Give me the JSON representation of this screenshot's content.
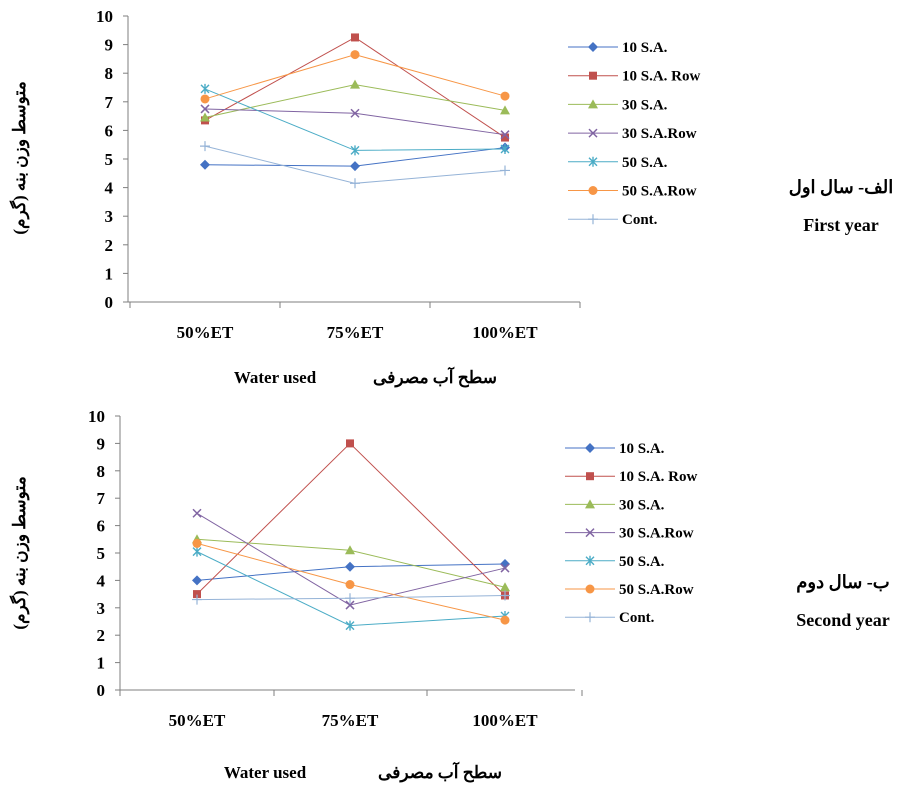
{
  "series_styles": [
    {
      "color": "#4472c4",
      "marker": "diamond"
    },
    {
      "color": "#c0504d",
      "marker": "square"
    },
    {
      "color": "#9bbb59",
      "marker": "triangle"
    },
    {
      "color": "#8064a2",
      "marker": "x"
    },
    {
      "color": "#4bacc6",
      "marker": "star"
    },
    {
      "color": "#f79646",
      "marker": "circle"
    },
    {
      "color": "#95b3d7",
      "marker": "plus"
    }
  ],
  "chart_data": [
    {
      "type": "line",
      "categories": [
        "50%ET",
        "75%ET",
        "100%ET"
      ],
      "ylim": [
        0,
        10
      ],
      "yticks": [
        "0",
        "1",
        "2",
        "3",
        "4",
        "5",
        "6",
        "7",
        "8",
        "9",
        "10"
      ],
      "ylabel": "متوسط وزن بنه (گرم)",
      "xlabel_en": "Water used",
      "xlabel_fa": "سطح آب مصرفی",
      "side_label_fa": "الف- سال اول",
      "side_label_en": "First year",
      "legend_position": "right",
      "grid": false,
      "series": [
        {
          "name": "10 S.A.",
          "values": [
            4.8,
            4.75,
            5.4
          ]
        },
        {
          "name": "10 S.A. Row",
          "values": [
            6.35,
            9.25,
            5.75
          ]
        },
        {
          "name": "30 S.A.",
          "values": [
            6.45,
            7.6,
            6.7
          ]
        },
        {
          "name": "30 S.A.Row",
          "values": [
            6.75,
            6.6,
            5.85
          ]
        },
        {
          "name": "50 S.A.",
          "values": [
            7.45,
            5.3,
            5.35
          ]
        },
        {
          "name": "50 S.A.Row",
          "values": [
            7.1,
            8.65,
            7.2
          ]
        },
        {
          "name": "Cont.",
          "values": [
            5.45,
            4.15,
            4.6
          ]
        }
      ]
    },
    {
      "type": "line",
      "categories": [
        "50%ET",
        "75%ET",
        "100%ET"
      ],
      "ylim": [
        0,
        10
      ],
      "yticks": [
        "0",
        "1",
        "2",
        "3",
        "4",
        "5",
        "6",
        "7",
        "8",
        "9",
        "10"
      ],
      "ylabel": "متوسط وزن بنه (گرم)",
      "xlabel_en": "Water used",
      "xlabel_fa": "سطح آب مصرفی",
      "side_label_fa": "ب- سال دوم",
      "side_label_en": "Second year",
      "legend_position": "right",
      "grid": false,
      "series": [
        {
          "name": "10 S.A.",
          "values": [
            4.0,
            4.5,
            4.6
          ]
        },
        {
          "name": "10 S.A. Row",
          "values": [
            3.5,
            9.0,
            3.45
          ]
        },
        {
          "name": "30 S.A.",
          "values": [
            5.5,
            5.1,
            3.75
          ]
        },
        {
          "name": "30 S.A.Row",
          "values": [
            6.45,
            3.1,
            4.45
          ]
        },
        {
          "name": "50 S.A.",
          "values": [
            5.05,
            2.35,
            2.7
          ]
        },
        {
          "name": "50 S.A.Row",
          "values": [
            5.35,
            3.85,
            2.55
          ]
        },
        {
          "name": "Cont.",
          "values": [
            3.3,
            3.35,
            3.45
          ]
        }
      ]
    }
  ]
}
